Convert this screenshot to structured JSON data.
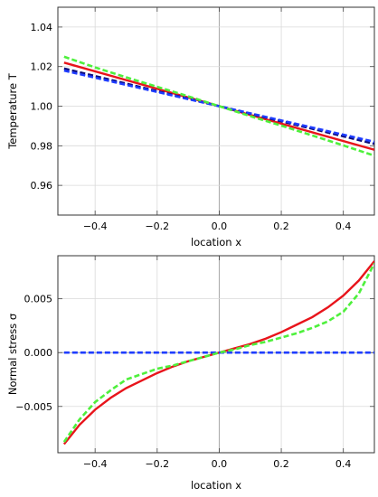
{
  "chart_data": [
    {
      "type": "line",
      "xlabel": "location   x",
      "ylabel": "Temperature   T",
      "xlim": [
        -0.52,
        0.5
      ],
      "ylim": [
        0.945,
        1.05
      ],
      "xticks": [
        -0.4,
        -0.2,
        0.0,
        0.2,
        0.4
      ],
      "xtick_labels": [
        "−0.4",
        "−0.2",
        "0.0",
        "0.2",
        "0.4"
      ],
      "yticks": [
        0.96,
        0.98,
        1.0,
        1.02,
        1.04
      ],
      "ytick_labels": [
        "0.96",
        "0.98",
        "1.00",
        "1.02",
        "1.04"
      ],
      "grid": true,
      "series": [
        {
          "style": "solid",
          "color": "#e8141b",
          "x": [
            -0.5,
            0.5
          ],
          "y": [
            1.022,
            0.978
          ]
        },
        {
          "style": "dashed",
          "color": "#0b0b7a",
          "x": [
            -0.5,
            0.5
          ],
          "y": [
            1.019,
            0.981
          ]
        },
        {
          "style": "dashed",
          "color": "#1e3cff",
          "x": [
            -0.5,
            0.5
          ],
          "y": [
            1.018,
            0.982
          ]
        },
        {
          "style": "dashed",
          "color": "#4ef03c",
          "x": [
            -0.5,
            -0.4,
            -0.3,
            -0.2,
            -0.1,
            0.0,
            0.1,
            0.2,
            0.3,
            0.4,
            0.5
          ],
          "y": [
            1.025,
            1.0196,
            1.0146,
            1.0098,
            1.005,
            1.0,
            0.995,
            0.9902,
            0.9852,
            0.9802,
            0.975
          ]
        }
      ]
    },
    {
      "type": "line",
      "xlabel": "location   x",
      "ylabel": "Normal stress   σ",
      "xlim": [
        -0.52,
        0.5
      ],
      "ylim": [
        -0.0093,
        0.009
      ],
      "xticks": [
        -0.4,
        -0.2,
        0.0,
        0.2,
        0.4
      ],
      "xtick_labels": [
        "−0.4",
        "−0.2",
        "0.0",
        "0.2",
        "0.4"
      ],
      "yticks": [
        -0.005,
        0.0,
        0.005
      ],
      "ytick_labels": [
        "−0.005",
        "0.000",
        "0.005"
      ],
      "grid": true,
      "series": [
        {
          "style": "solid",
          "color": "#e8141b",
          "x": [
            -0.5,
            -0.45,
            -0.4,
            -0.35,
            -0.3,
            -0.25,
            -0.2,
            -0.15,
            -0.1,
            -0.05,
            0.0,
            0.05,
            0.1,
            0.15,
            0.2,
            0.25,
            0.3,
            0.35,
            0.4,
            0.45,
            0.5
          ],
          "y": [
            -0.0085,
            -0.0067,
            -0.0053,
            -0.0042,
            -0.0033,
            -0.0026,
            -0.0019,
            -0.0013,
            -0.0008,
            -0.0004,
            0.0,
            0.0004,
            0.0008,
            0.0013,
            0.0019,
            0.0026,
            0.0033,
            0.0042,
            0.0053,
            0.0067,
            0.0085
          ]
        },
        {
          "style": "dashed",
          "color": "#1e3cff",
          "x": [
            -0.5,
            0.5
          ],
          "y": [
            0.0,
            0.0
          ]
        },
        {
          "style": "dashed",
          "color": "#4ef03c",
          "x": [
            -0.5,
            -0.45,
            -0.4,
            -0.35,
            -0.3,
            -0.25,
            -0.2,
            -0.15,
            -0.1,
            -0.05,
            0.0,
            0.05,
            0.1,
            0.15,
            0.2,
            0.25,
            0.3,
            0.35,
            0.4,
            0.45,
            0.5
          ],
          "y": [
            -0.0083,
            -0.0062,
            -0.0046,
            -0.0035,
            -0.0025,
            -0.002,
            -0.0015,
            -0.0012,
            -0.0008,
            -0.0004,
            0.0,
            0.0003,
            0.0007,
            0.001,
            0.0014,
            0.0018,
            0.0023,
            0.0029,
            0.0038,
            0.0055,
            0.0083
          ]
        }
      ]
    }
  ]
}
